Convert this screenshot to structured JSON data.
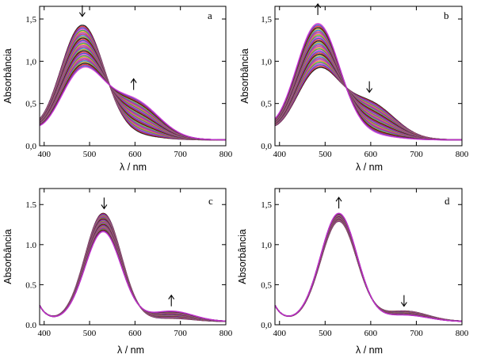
{
  "chart_data": [
    {
      "type": "line",
      "panel_label": "a",
      "xlabel": "λ / nm",
      "ylabel": "Absorbância",
      "xlim": [
        390,
        800
      ],
      "ylim": [
        0,
        1.65
      ],
      "xticks": [
        400,
        500,
        600,
        700,
        800
      ],
      "xtick_labels": [
        "400",
        "500",
        "600",
        "700",
        "800"
      ],
      "yticks": [
        0,
        0.5,
        1.0,
        1.5
      ],
      "ytick_labels": [
        "0,0",
        "0,5",
        "1,0",
        "1,5"
      ],
      "band1": {
        "center": 484,
        "width": 48,
        "first": 1.35,
        "last": 0.8
      },
      "band2": {
        "center": 597,
        "width": 55,
        "first": 0.05,
        "last": 0.45
      },
      "baseline": 0.07,
      "bottom_background": 0.05,
      "arrows": [
        {
          "x": 484,
          "direction": "down"
        },
        {
          "x": 597,
          "direction": "up"
        }
      ]
    },
    {
      "type": "line",
      "panel_label": "b",
      "xlabel": "λ / nm",
      "ylabel": "Absorbância",
      "xlim": [
        390,
        800
      ],
      "ylim": [
        0,
        1.65
      ],
      "xticks": [
        400,
        500,
        600,
        700,
        800
      ],
      "xtick_labels": [
        "400",
        "500",
        "600",
        "700",
        "800"
      ],
      "yticks": [
        0,
        0.5,
        1.0,
        1.5
      ],
      "ytick_labels": [
        "0,0",
        "0,5",
        "1,0",
        "1,5"
      ],
      "band1": {
        "center": 484,
        "width": 48,
        "first": 0.8,
        "last": 1.37
      },
      "band2": {
        "center": 597,
        "width": 55,
        "first": 0.42,
        "last": 0.05
      },
      "baseline": 0.07,
      "bottom_background": 0.05,
      "arrows": [
        {
          "x": 484,
          "direction": "up"
        },
        {
          "x": 597,
          "direction": "down"
        }
      ]
    },
    {
      "type": "line",
      "panel_label": "c",
      "xlabel": "λ / nm",
      "ylabel": "Absorbância",
      "xlim": [
        390,
        800
      ],
      "ylim": [
        0,
        1.7
      ],
      "xticks": [
        400,
        500,
        600,
        700,
        800
      ],
      "xtick_labels": [
        "400",
        "500",
        "600",
        "700",
        "800"
      ],
      "yticks": [
        0,
        0.5,
        1.0,
        1.5
      ],
      "ytick_labels": [
        "0.0",
        "0.5",
        "1.0",
        "1.5"
      ],
      "band1": {
        "center": 530,
        "width": 40,
        "first": 1.35,
        "last": 1.12
      },
      "band2": {
        "center": 680,
        "width": 48,
        "first": 0.04,
        "last": 0.13
      },
      "baseline": 0.04,
      "bottom_background": 0.2,
      "arrows": [
        {
          "x": 532,
          "direction": "down"
        },
        {
          "x": 680,
          "direction": "up"
        }
      ]
    },
    {
      "type": "line",
      "panel_label": "d",
      "xlabel": "λ / nm",
      "ylabel": "Absorbância",
      "xlim": [
        390,
        800
      ],
      "ylim": [
        0,
        1.7
      ],
      "xticks": [
        400,
        500,
        600,
        700,
        800
      ],
      "xtick_labels": [
        "400",
        "500",
        "600",
        "700",
        "800"
      ],
      "yticks": [
        0,
        0.5,
        1.0,
        1.5
      ],
      "ytick_labels": [
        "0,0",
        "0,5",
        "1,0",
        "1,5"
      ],
      "band1": {
        "center": 530,
        "width": 40,
        "first": 1.25,
        "last": 1.35
      },
      "band2": {
        "center": 675,
        "width": 50,
        "first": 0.13,
        "last": 0.08
      },
      "baseline": 0.04,
      "bottom_background": 0.2,
      "arrows": [
        {
          "x": 530,
          "direction": "up"
        },
        {
          "x": 673,
          "direction": "down"
        }
      ]
    }
  ],
  "series_palette": [
    "#000000",
    "#e8182c",
    "#2b39c8",
    "#d62fd0",
    "#1f9e3a",
    "#f07e1c",
    "#9b2fc7",
    "#c81f6a",
    "#1d6fd0",
    "#b5a21a"
  ]
}
